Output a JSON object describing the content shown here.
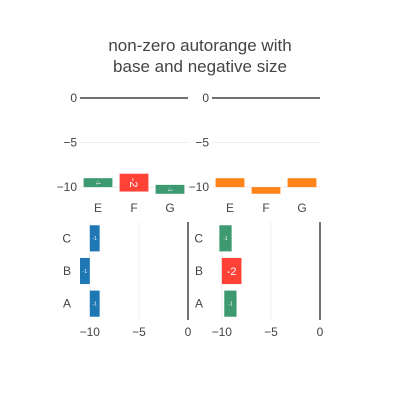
{
  "chart_data": {
    "title_lines": [
      "non-zero autorange with",
      "base and negative size"
    ],
    "subplots": [
      {
        "id": "top-left",
        "type": "bar",
        "orientation": "v",
        "categories": [
          "E",
          "F",
          "G"
        ],
        "base": [
          -9,
          -8.5,
          -9.75
        ],
        "values": [
          -1,
          -2,
          -1
        ],
        "labels": [
          "-1",
          "-2",
          "-1"
        ],
        "colors": [
          "#3d9970",
          "#ff4136",
          "#3d9970"
        ],
        "ylim": [
          -11,
          0
        ],
        "yticks": [
          0,
          -5,
          -10
        ],
        "ytick_labels": [
          "0",
          "−5",
          "−10"
        ]
      },
      {
        "id": "top-right",
        "type": "bar",
        "orientation": "v",
        "categories": [
          "E",
          "F",
          "G"
        ],
        "base": [
          -9,
          -10,
          -9
        ],
        "values": [
          -1,
          -0.75,
          -1
        ],
        "labels": [
          "",
          "",
          ""
        ],
        "colors": [
          "#ff851b",
          "#ff851b",
          "#ff851b"
        ],
        "ylim": [
          -11,
          0
        ],
        "yticks": [
          0,
          -5,
          -10
        ],
        "ytick_labels": [
          "0",
          "−5",
          "−10"
        ]
      },
      {
        "id": "bottom-left",
        "type": "bar",
        "orientation": "h",
        "categories": [
          "A",
          "B",
          "C"
        ],
        "base": [
          -9,
          -10,
          -9
        ],
        "values": [
          -1,
          -1,
          -1
        ],
        "labels": [
          "-1",
          "-1",
          "-1"
        ],
        "colors": [
          "#1f77b4",
          "#1f77b4",
          "#1f77b4"
        ],
        "xlim": [
          -11,
          0
        ],
        "xticks": [
          -10,
          -5,
          0
        ],
        "xtick_labels": [
          "−10",
          "−5",
          "0"
        ]
      },
      {
        "id": "bottom-right",
        "type": "bar",
        "orientation": "h",
        "categories": [
          "A",
          "B",
          "C"
        ],
        "base": [
          -8.5,
          -8,
          -9
        ],
        "values": [
          -1.25,
          -2,
          -1.25
        ],
        "labels": [
          "-1",
          "-2",
          "-1"
        ],
        "colors": [
          "#3d9970",
          "#ff4136",
          "#3d9970"
        ],
        "xlim": [
          -11,
          0
        ],
        "xticks": [
          -10,
          -5,
          0
        ],
        "xtick_labels": [
          "−10",
          "−5",
          "0"
        ]
      }
    ]
  }
}
